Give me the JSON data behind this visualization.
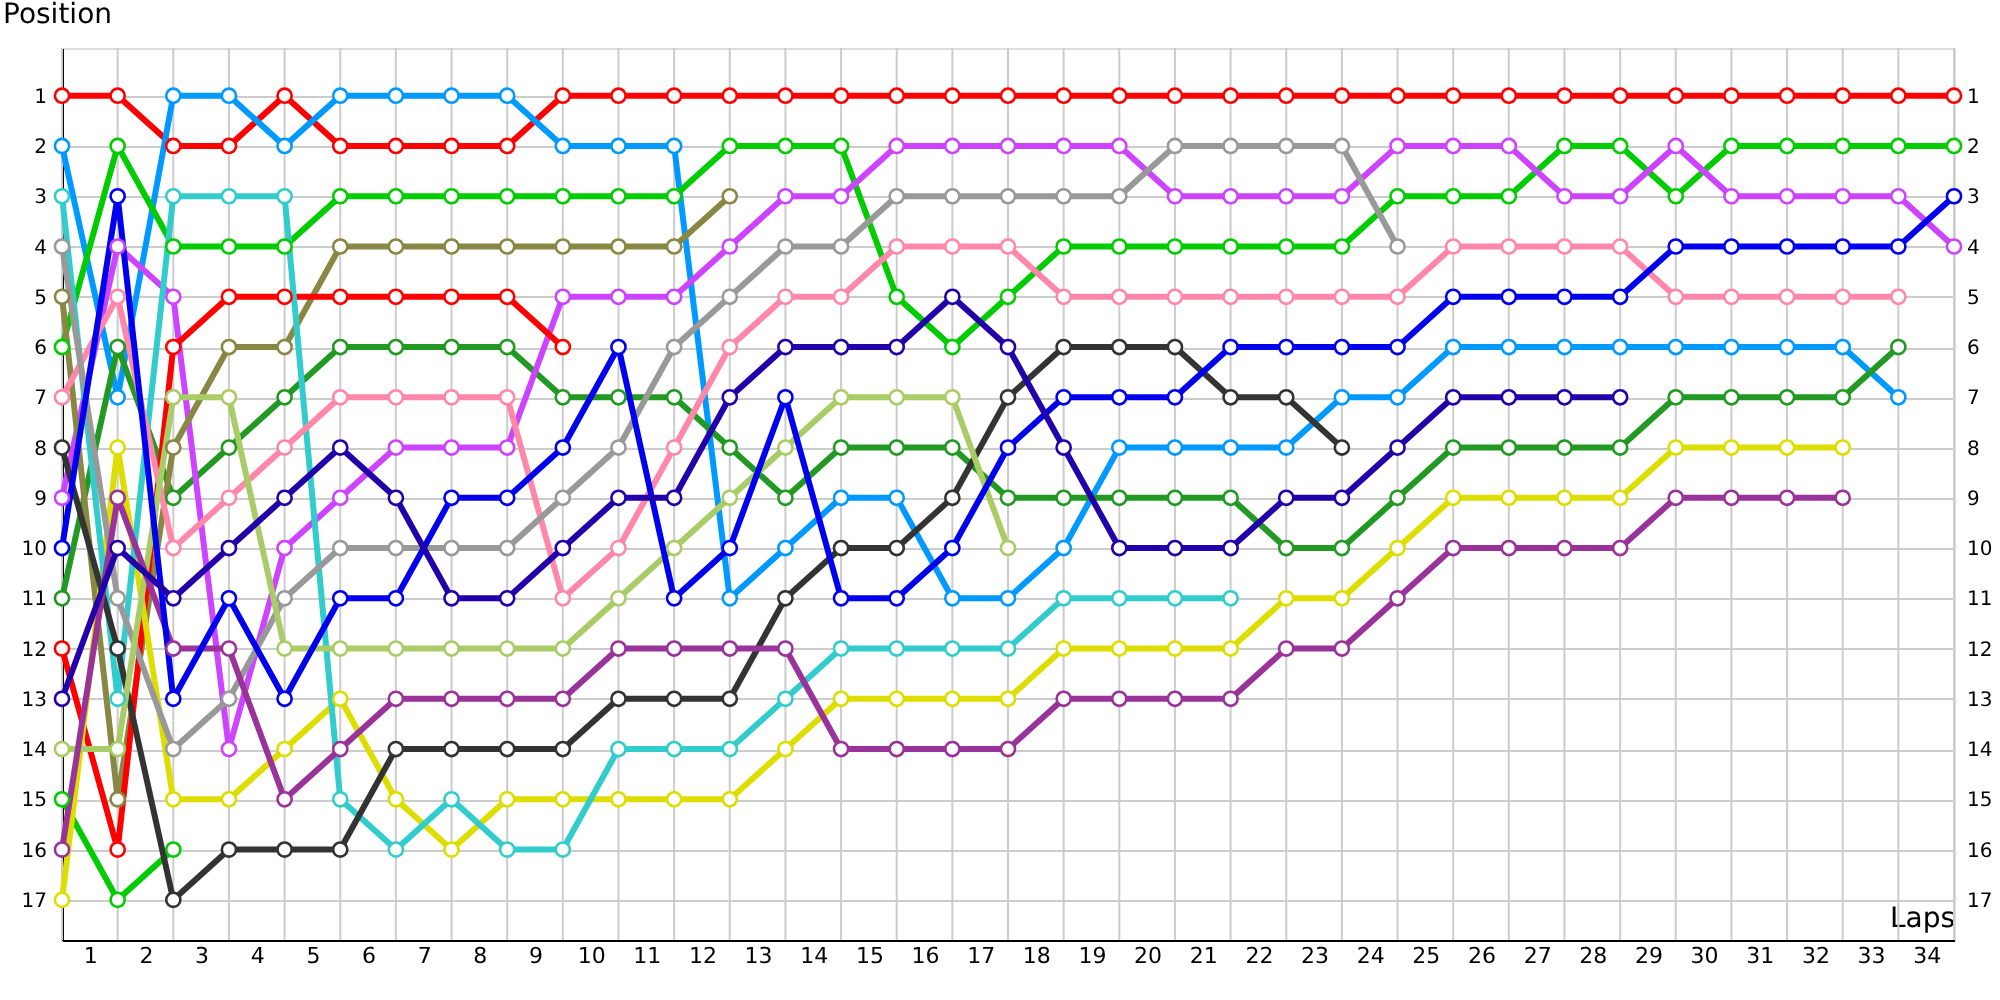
{
  "chart_data": {
    "type": "line",
    "xlabel": "Laps",
    "ylabel": "Position",
    "marker": "circle",
    "line_style": "solid",
    "grid": true,
    "legend": false,
    "x": [
      0,
      1,
      2,
      3,
      4,
      5,
      6,
      7,
      8,
      9,
      10,
      11,
      12,
      13,
      14,
      15,
      16,
      17,
      18,
      19,
      20,
      21,
      22,
      23,
      24,
      25,
      26,
      27,
      28,
      29,
      30,
      31,
      32,
      33,
      34
    ],
    "xlim": [
      0,
      34
    ],
    "xticks": [
      {
        "value": 0.5,
        "label": "1"
      },
      {
        "value": 1.5,
        "label": "2"
      },
      {
        "value": 2.5,
        "label": "3"
      },
      {
        "value": 3.5,
        "label": "4"
      },
      {
        "value": 4.5,
        "label": "5"
      },
      {
        "value": 5.5,
        "label": "6"
      },
      {
        "value": 6.5,
        "label": "7"
      },
      {
        "value": 7.5,
        "label": "8"
      },
      {
        "value": 8.5,
        "label": "9"
      },
      {
        "value": 9.5,
        "label": "10"
      },
      {
        "value": 10.5,
        "label": "11"
      },
      {
        "value": 11.5,
        "label": "12"
      },
      {
        "value": 12.5,
        "label": "13"
      },
      {
        "value": 13.5,
        "label": "14"
      },
      {
        "value": 14.5,
        "label": "15"
      },
      {
        "value": 15.5,
        "label": "16"
      },
      {
        "value": 16.5,
        "label": "17"
      },
      {
        "value": 17.5,
        "label": "18"
      },
      {
        "value": 18.5,
        "label": "19"
      },
      {
        "value": 19.5,
        "label": "20"
      },
      {
        "value": 20.5,
        "label": "21"
      },
      {
        "value": 21.5,
        "label": "22"
      },
      {
        "value": 22.5,
        "label": "23"
      },
      {
        "value": 23.5,
        "label": "24"
      },
      {
        "value": 24.5,
        "label": "25"
      },
      {
        "value": 25.5,
        "label": "26"
      },
      {
        "value": 26.5,
        "label": "27"
      },
      {
        "value": 27.5,
        "label": "28"
      },
      {
        "value": 28.5,
        "label": "29"
      },
      {
        "value": 29.5,
        "label": "30"
      },
      {
        "value": 30.5,
        "label": "31"
      },
      {
        "value": 31.5,
        "label": "32"
      },
      {
        "value": 32.5,
        "label": "33"
      },
      {
        "value": 33.5,
        "label": "34"
      }
    ],
    "ylim": [
      17.8,
      0.05
    ],
    "yticks": [
      1,
      2,
      3,
      4,
      5,
      6,
      7,
      8,
      9,
      10,
      11,
      12,
      13,
      14,
      15,
      16,
      17
    ],
    "y2lim": [
      17.8,
      0.05
    ],
    "y2ticks": [
      1,
      2,
      3,
      4,
      5,
      6,
      7,
      8,
      9,
      10,
      11,
      12,
      13,
      14,
      15,
      16,
      17
    ],
    "series": [
      {
        "color": "#ff0000",
        "values": [
          1,
          1,
          2,
          2,
          1,
          2,
          2,
          2,
          2,
          1,
          1,
          1,
          1,
          1,
          1,
          1,
          1,
          1,
          1,
          1,
          1,
          1,
          1,
          1,
          1,
          1,
          1,
          1,
          1,
          1,
          1,
          1,
          1,
          1,
          1
        ]
      },
      {
        "color": "#0099ff",
        "values": [
          2,
          7,
          1,
          1,
          2,
          1,
          1,
          1,
          1,
          2,
          2,
          2,
          11,
          10,
          9,
          9,
          11,
          11,
          10,
          8,
          8,
          8,
          8,
          7,
          7,
          6,
          6,
          6,
          6,
          6,
          6,
          6,
          6,
          7,
          null
        ]
      },
      {
        "color": "#00cc00",
        "values": [
          6,
          2,
          4,
          4,
          4,
          3,
          3,
          3,
          3,
          3,
          3,
          3,
          2,
          2,
          2,
          5,
          6,
          5,
          4,
          4,
          4,
          4,
          4,
          4,
          3,
          3,
          3,
          2,
          2,
          3,
          2,
          2,
          2,
          2,
          2
        ]
      },
      {
        "color": "#229922",
        "values": [
          11,
          6,
          9,
          8,
          7,
          6,
          6,
          6,
          6,
          7,
          7,
          7,
          8,
          9,
          8,
          8,
          8,
          9,
          9,
          9,
          9,
          9,
          10,
          10,
          9,
          8,
          8,
          8,
          8,
          7,
          7,
          7,
          7,
          6,
          null
        ]
      },
      {
        "color": "#cc44ff",
        "values": [
          9,
          4,
          5,
          14,
          10,
          9,
          8,
          8,
          8,
          5,
          5,
          5,
          4,
          3,
          3,
          2,
          2,
          2,
          2,
          2,
          3,
          3,
          3,
          3,
          2,
          2,
          2,
          3,
          3,
          2,
          3,
          3,
          3,
          3,
          4
        ]
      },
      {
        "color": "#888844",
        "values": [
          5,
          15,
          8,
          6,
          6,
          4,
          4,
          4,
          4,
          4,
          4,
          4,
          3,
          null,
          null,
          null,
          null,
          null,
          null,
          null,
          null,
          null,
          null,
          null,
          null,
          null,
          null,
          null,
          null,
          null,
          null,
          null,
          null,
          null,
          null
        ]
      },
      {
        "color": "#ff0000",
        "values": [
          12,
          16,
          6,
          5,
          5,
          5,
          5,
          5,
          5,
          6,
          null,
          null,
          null,
          null,
          null,
          null,
          null,
          null,
          null,
          null,
          null,
          null,
          null,
          null,
          null,
          null,
          null,
          null,
          null,
          null,
          null,
          null,
          null,
          null,
          null
        ]
      },
      {
        "color": "#00cc00",
        "values": [
          15,
          17,
          16,
          null,
          null,
          null,
          null,
          null,
          null,
          null,
          null,
          null,
          null,
          null,
          null,
          null,
          null,
          null,
          null,
          null,
          null,
          null,
          null,
          null,
          null,
          null,
          null,
          null,
          null,
          null,
          null,
          null,
          null,
          null,
          null
        ]
      },
      {
        "color": "#dddd00",
        "values": [
          17,
          8,
          15,
          15,
          14,
          13,
          15,
          16,
          15,
          15,
          15,
          15,
          15,
          14,
          13,
          13,
          13,
          13,
          12,
          12,
          12,
          12,
          11,
          11,
          10,
          9,
          9,
          9,
          9,
          8,
          8,
          8,
          8,
          null,
          null
        ]
      },
      {
        "color": "#33cccc",
        "values": [
          3,
          13,
          3,
          3,
          3,
          15,
          16,
          15,
          16,
          16,
          14,
          14,
          14,
          13,
          12,
          12,
          12,
          12,
          11,
          11,
          11,
          11,
          null,
          null,
          null,
          null,
          null,
          null,
          null,
          null,
          null,
          null,
          null,
          null,
          null
        ]
      },
      {
        "color": "#ff88aa",
        "values": [
          7,
          5,
          10,
          9,
          8,
          7,
          7,
          7,
          7,
          11,
          10,
          8,
          6,
          5,
          5,
          4,
          4,
          4,
          5,
          5,
          5,
          5,
          5,
          5,
          5,
          4,
          4,
          4,
          4,
          5,
          5,
          5,
          5,
          5,
          null
        ]
      },
      {
        "color": "#999999",
        "values": [
          4,
          11,
          14,
          13,
          11,
          10,
          10,
          10,
          10,
          9,
          8,
          6,
          5,
          4,
          4,
          3,
          3,
          3,
          3,
          3,
          2,
          2,
          2,
          2,
          4,
          null,
          null,
          null,
          null,
          null,
          null,
          null,
          null,
          null,
          null
        ]
      },
      {
        "color": "#333333",
        "values": [
          8,
          12,
          17,
          16,
          16,
          16,
          14,
          14,
          14,
          14,
          13,
          13,
          13,
          11,
          10,
          10,
          9,
          7,
          6,
          6,
          6,
          7,
          7,
          8,
          null,
          null,
          null,
          null,
          null,
          null,
          null,
          null,
          null,
          null,
          null
        ]
      },
      {
        "color": "#aacc66",
        "values": [
          14,
          14,
          7,
          7,
          12,
          12,
          12,
          12,
          12,
          12,
          11,
          10,
          9,
          8,
          7,
          7,
          7,
          10,
          null,
          null,
          null,
          null,
          null,
          null,
          null,
          null,
          null,
          null,
          null,
          null,
          null,
          null,
          null,
          null,
          null
        ]
      },
      {
        "color": "#993399",
        "values": [
          16,
          9,
          12,
          12,
          15,
          14,
          13,
          13,
          13,
          13,
          12,
          12,
          12,
          12,
          14,
          14,
          14,
          14,
          13,
          13,
          13,
          13,
          12,
          12,
          11,
          10,
          10,
          10,
          10,
          9,
          9,
          9,
          9,
          null,
          null
        ]
      },
      {
        "color": "#0000ee",
        "values": [
          10,
          3,
          13,
          11,
          13,
          11,
          11,
          9,
          9,
          8,
          6,
          11,
          10,
          7,
          11,
          11,
          10,
          8,
          7,
          7,
          7,
          6,
          6,
          6,
          6,
          5,
          5,
          5,
          5,
          4,
          4,
          4,
          4,
          4,
          3
        ]
      },
      {
        "color": "#2200aa",
        "values": [
          13,
          10,
          11,
          10,
          9,
          8,
          9,
          11,
          11,
          10,
          9,
          9,
          7,
          6,
          6,
          6,
          5,
          6,
          8,
          10,
          10,
          10,
          9,
          9,
          8,
          7,
          7,
          7,
          7,
          null,
          null,
          null,
          null,
          null,
          null
        ]
      }
    ]
  }
}
